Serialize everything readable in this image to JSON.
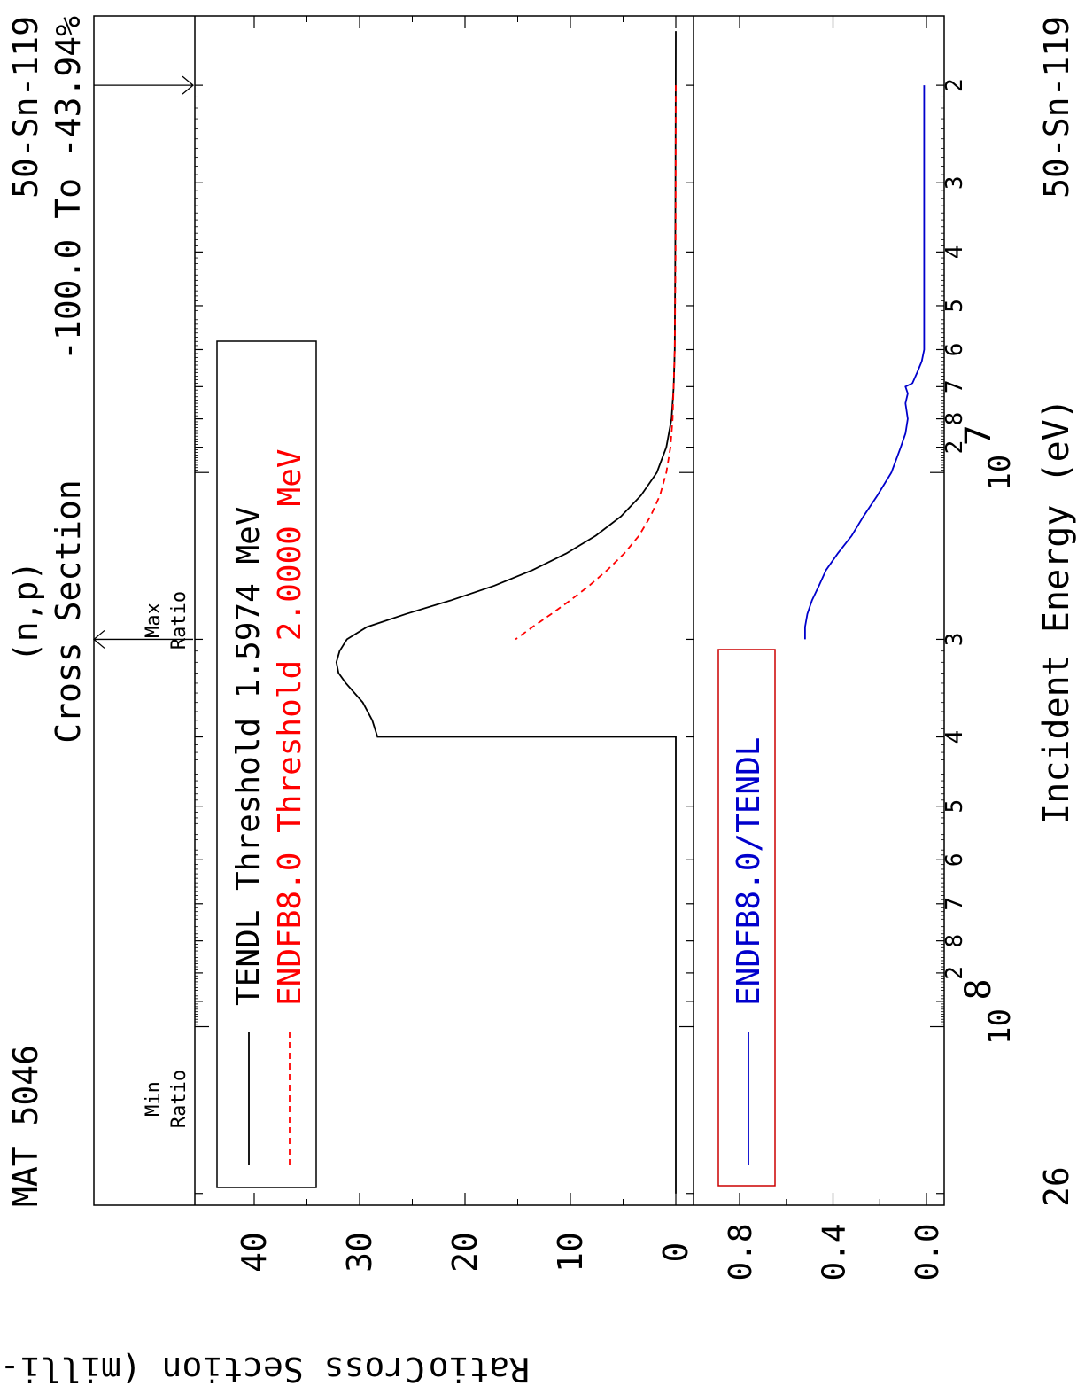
{
  "header": {
    "mat": "MAT 5046",
    "reaction": "(n,p)",
    "quantity": "Cross Section",
    "ratio_range": "-100.0 To -43.94%",
    "nuclide": "50-Sn-119",
    "page_number": "26",
    "nuclide_bottom": "50-Sn-119"
  },
  "arrows": {
    "min_label_1": "Min",
    "min_label_2": "Ratio",
    "max_label_1": "Max",
    "max_label_2": "Ratio"
  },
  "colors": {
    "tendl": "#000000",
    "endfb": "#ff0000",
    "ratio": "#0000cc",
    "ratio_box": "#cc0000"
  },
  "chart_data": [
    {
      "type": "line",
      "panel": "cross-section",
      "xlabel": "Incident Energy (eV)",
      "ylabel": "Cross Section (milli-barns)",
      "xscale": "log",
      "xlim": [
        1500000.0,
        210000000.0
      ],
      "ylim": [
        -1.5,
        46
      ],
      "y_ticks": [
        "0",
        "10",
        "20",
        "30",
        "40"
      ],
      "x_minor_tick_labels": [
        "2",
        "3",
        "4",
        "5",
        "6",
        "7",
        "8",
        "2",
        "3",
        "4",
        "5",
        "6",
        "7",
        "8",
        "2"
      ],
      "x_major_tick_labels": [
        {
          "base": "10",
          "exp": "7"
        },
        {
          "base": "10",
          "exp": "8"
        }
      ],
      "legend_position": "top-left",
      "series": [
        {
          "name": "TENDL",
          "legend": "TENDL Threshold 1.5974 MeV",
          "style": "solid",
          "x": [
            1597400.0,
            2000000.0,
            4000000.0,
            6000000.0,
            7000000.0,
            8000000.0,
            9000000.0,
            10000000.0,
            11000000.0,
            12000000.0,
            13000000.0,
            14000000.0,
            15000000.0,
            16000000.0,
            17000000.0,
            18000000.0,
            19000000.0,
            20000000.0,
            21000000.0,
            22000000.0,
            23000000.0,
            24000000.0,
            26000000.0,
            28000000.0,
            30000000.0,
            30000000.0,
            200000000.0
          ],
          "y": [
            0,
            0.01,
            0.05,
            0.1,
            0.2,
            0.4,
            0.9,
            1.8,
            3.3,
            5.2,
            7.6,
            10.4,
            13.6,
            17.2,
            21.3,
            25.6,
            29.3,
            31.2,
            31.9,
            32.2,
            32.0,
            31.3,
            29.7,
            28.8,
            28.3,
            0,
            0
          ]
        },
        {
          "name": "ENDFB8.0",
          "legend": "ENDFB8.0 Threshold 2.0000 MeV",
          "style": "dashed",
          "x": [
            2000000.0,
            4000000.0,
            6000000.0,
            8000000.0,
            9000000.0,
            10000000.0,
            11000000.0,
            12000000.0,
            13000000.0,
            14000000.0,
            15000000.0,
            16000000.0,
            17000000.0,
            18000000.0,
            19000000.0,
            20000000.0
          ],
          "y": [
            0,
            0.02,
            0.1,
            0.3,
            0.5,
            0.9,
            1.5,
            2.4,
            3.5,
            4.9,
            6.5,
            8.2,
            10.0,
            11.8,
            13.6,
            15.2
          ]
        }
      ]
    },
    {
      "type": "line",
      "panel": "ratio",
      "ylabel": "Ratio",
      "xscale": "log",
      "xlim": [
        1500000.0,
        210000000.0
      ],
      "ylim": [
        -0.05,
        0.92
      ],
      "y_ticks": [
        "0.0",
        "0.4",
        "0.8"
      ],
      "legend_position": "top-left",
      "series": [
        {
          "name": "ENDFB8.0/TENDL",
          "legend": "ENDFB8.0/TENDL",
          "x": [
            2000000.0,
            3000000.0,
            5000000.0,
            6000000.0,
            6300000.0,
            6600000.0,
            6900000.0,
            7000000.0,
            7200000.0,
            7500000.0,
            8000000.0,
            8500000.0,
            9000000.0,
            10000000.0,
            11000000.0,
            12000000.0,
            13000000.0,
            14000000.0,
            15000000.0,
            16000000.0,
            17000000.0,
            18000000.0,
            19000000.0,
            20000000.0
          ],
          "y": [
            0.01,
            0.01,
            0.01,
            0.01,
            0.02,
            0.04,
            0.06,
            0.09,
            0.08,
            0.09,
            0.08,
            0.09,
            0.11,
            0.15,
            0.21,
            0.27,
            0.32,
            0.38,
            0.43,
            0.46,
            0.49,
            0.51,
            0.52,
            0.52
          ]
        }
      ]
    }
  ]
}
